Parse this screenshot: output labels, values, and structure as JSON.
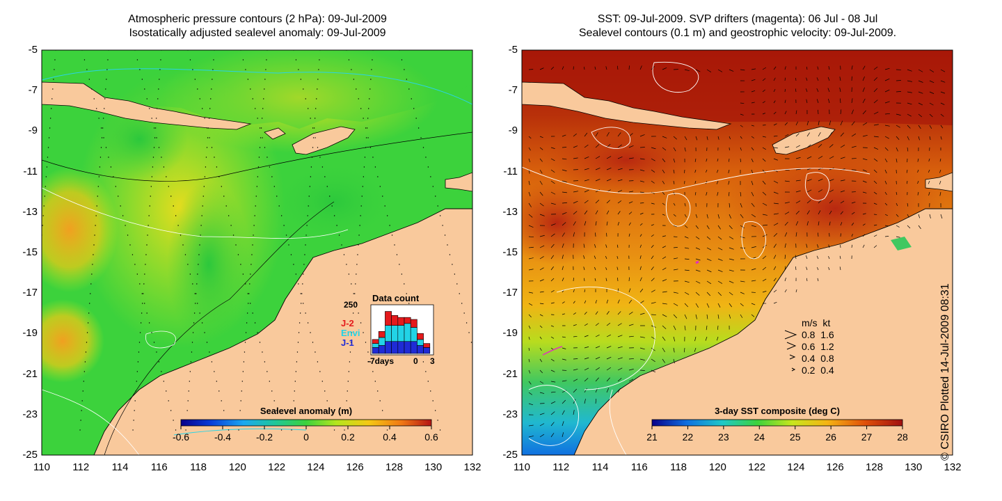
{
  "left_panel": {
    "title_line1": "Atmospheric pressure contours (2 hPa): 09-Jul-2009",
    "title_line2": "Isostatically adjusted sealevel anomaly: 09-Jul-2009",
    "colorbar": {
      "label": "Sealevel anomaly (m)",
      "ticks": [
        "-0.6",
        "-0.4",
        "-0.2",
        "0",
        "0.2",
        "0.4",
        "0.6"
      ]
    },
    "data_count": {
      "title": "Data count",
      "ymax_label": "250",
      "xlabel_start": "-7days",
      "xlabel_zero": "0",
      "xlabel_end": "3",
      "legend": [
        {
          "label": "J-2",
          "color": "#e41a1c"
        },
        {
          "label": "Envi",
          "color": "#22d3e6"
        },
        {
          "label": "J-1",
          "color": "#1f2bd6"
        }
      ],
      "bars": [
        {
          "day": -7,
          "j1": 30,
          "envi": 20,
          "j2": 20
        },
        {
          "day": -6,
          "j1": 40,
          "envi": 40,
          "j2": 30
        },
        {
          "day": -5,
          "j1": 60,
          "envi": 80,
          "j2": 70
        },
        {
          "day": -4,
          "j1": 60,
          "envi": 80,
          "j2": 50
        },
        {
          "day": -3,
          "j1": 60,
          "envi": 80,
          "j2": 40
        },
        {
          "day": -2,
          "j1": 60,
          "envi": 90,
          "j2": 30
        },
        {
          "day": -1,
          "j1": 60,
          "envi": 70,
          "j2": 40
        },
        {
          "day": 0,
          "j1": 40,
          "envi": 30,
          "j2": 30
        },
        {
          "day": 1,
          "j1": 30,
          "envi": 0,
          "j2": 20
        }
      ]
    }
  },
  "right_panel": {
    "title_line1": "SST: 09-Jul-2009. SVP drifters (magenta): 06 Jul - 08 Jul",
    "title_line2": "Sealevel contours (0.1 m) and geostrophic velocity: 09-Jul-2009.",
    "colorbar": {
      "label": "3-day SST composite (deg C)",
      "ticks": [
        "21",
        "22",
        "23",
        "24",
        "25",
        "26",
        "27",
        "28"
      ]
    },
    "velocity_legend": {
      "header_ms": "m/s",
      "header_kt": "kt",
      "rows": [
        {
          "ms": "0.8",
          "kt": "1.6"
        },
        {
          "ms": "0.6",
          "kt": "1.2"
        },
        {
          "ms": "0.4",
          "kt": "0.8"
        },
        {
          "ms": "0.2",
          "kt": "0.4"
        }
      ]
    }
  },
  "axes": {
    "y_ticks": [
      "-5",
      "-7",
      "-9",
      "-11",
      "-13",
      "-15",
      "-17",
      "-19",
      "-21",
      "-23",
      "-25"
    ],
    "x_ticks": [
      "110",
      "112",
      "114",
      "116",
      "118",
      "120",
      "122",
      "124",
      "126",
      "128",
      "130",
      "132"
    ],
    "lat_range": [
      -25,
      -5
    ],
    "lon_range": [
      110,
      132
    ]
  },
  "credit": "© CSIRO Plotted 14-Jul-2009 08:31",
  "colors": {
    "land": "#f9c99c",
    "contour_cyan": "#29d4e6",
    "drifter_magenta": "#e030c0"
  }
}
